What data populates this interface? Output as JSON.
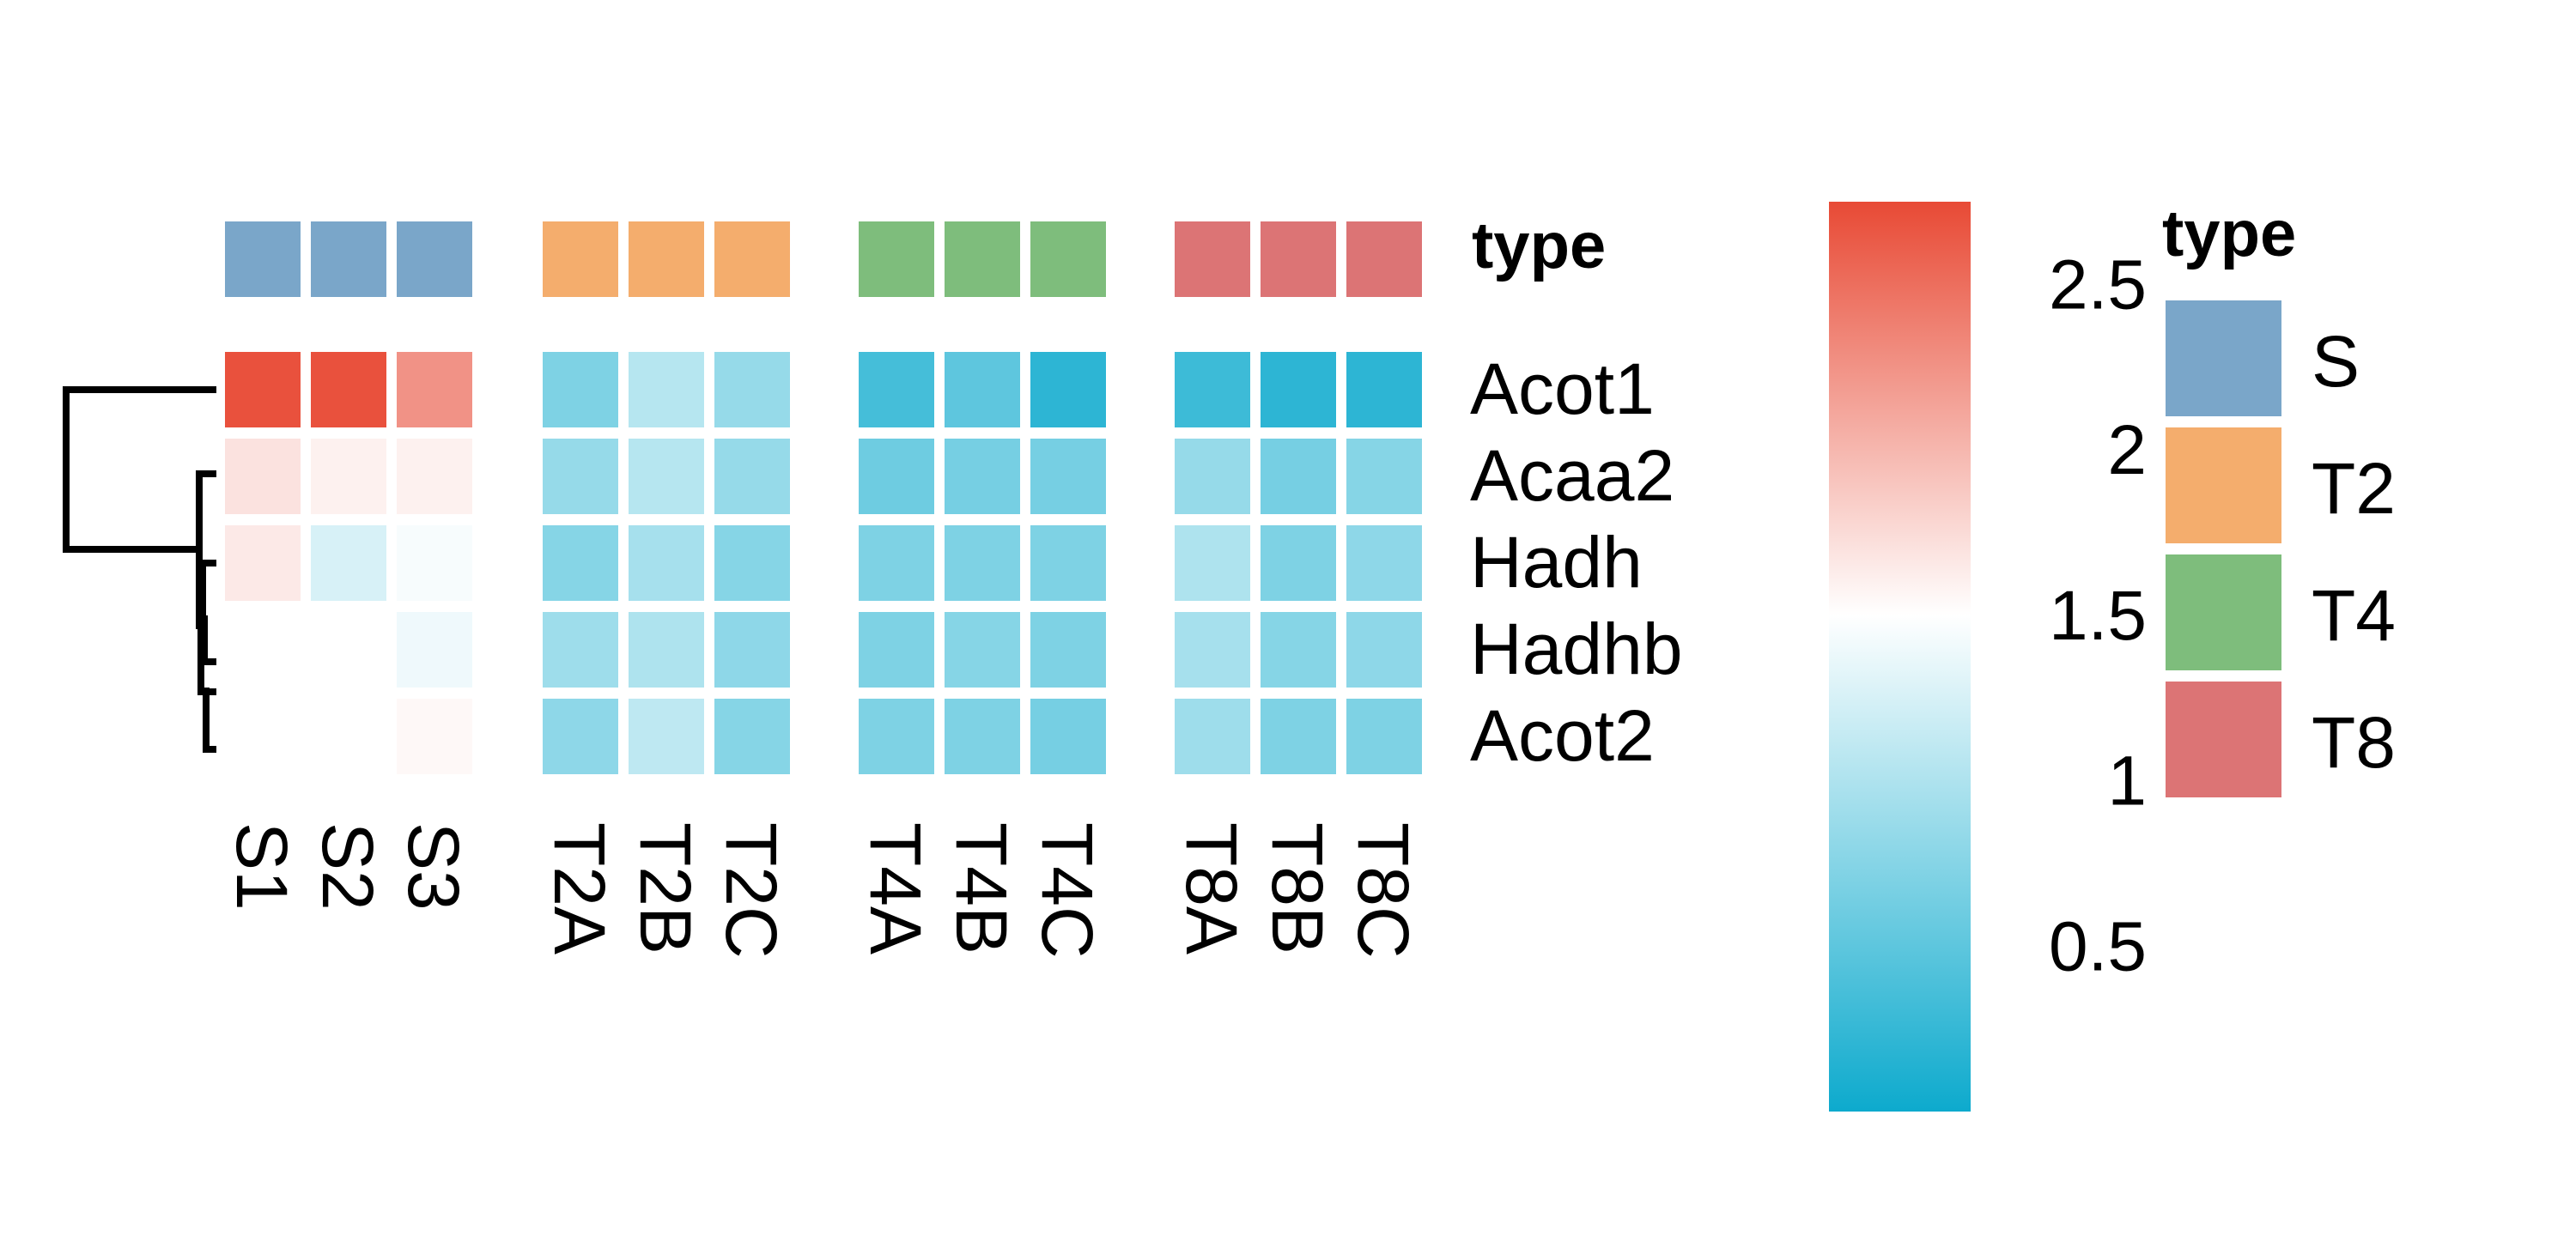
{
  "chart_data": {
    "type": "heatmap",
    "rows": [
      "Acot1",
      "Acaa2",
      "Hadh",
      "Hadhb",
      "Acot2"
    ],
    "columns": [
      "S1",
      "S2",
      "S3",
      "T2A",
      "T2B",
      "T2C",
      "T4A",
      "T4B",
      "T4C",
      "T8A",
      "T8B",
      "T8C"
    ],
    "column_groups": [
      "S",
      "S",
      "S",
      "T2",
      "T2",
      "T2",
      "T4",
      "T4",
      "T4",
      "T8",
      "T8",
      "T8"
    ],
    "values": [
      [
        2.7,
        2.7,
        2.25,
        0.7,
        1.05,
        0.85,
        0.35,
        0.5,
        0.2,
        0.3,
        0.2,
        0.2
      ],
      [
        1.7,
        1.6,
        1.6,
        0.85,
        1.05,
        0.85,
        0.6,
        0.65,
        0.65,
        0.85,
        0.65,
        0.75
      ],
      [
        1.65,
        1.25,
        1.45,
        0.75,
        0.95,
        0.75,
        0.7,
        0.7,
        0.7,
        1.0,
        0.7,
        0.8
      ],
      [
        1.5,
        1.5,
        1.4,
        0.9,
        1.0,
        0.8,
        0.7,
        0.75,
        0.7,
        0.95,
        0.75,
        0.8
      ],
      [
        1.5,
        1.5,
        1.55,
        0.8,
        1.1,
        0.75,
        0.7,
        0.7,
        0.65,
        0.9,
        0.7,
        0.7
      ]
    ],
    "annotation": {
      "title": "type",
      "groups": [
        "S",
        "T2",
        "T4",
        "T8"
      ],
      "colors": {
        "S": "#7aa6c9",
        "T2": "#f4ad6d",
        "T4": "#7ebd7c",
        "T8": "#dc7475"
      }
    },
    "color_scale": {
      "min": 0,
      "mid": 1.5,
      "max": 2.75,
      "low_color": "#0daacd",
      "mid_color": "#ffffff",
      "high_color": "#e84a35",
      "ticks": [
        "2.5",
        "2",
        "1.5",
        "1",
        "0.5"
      ]
    },
    "legend_title": "type",
    "dendrogram": "rows"
  }
}
